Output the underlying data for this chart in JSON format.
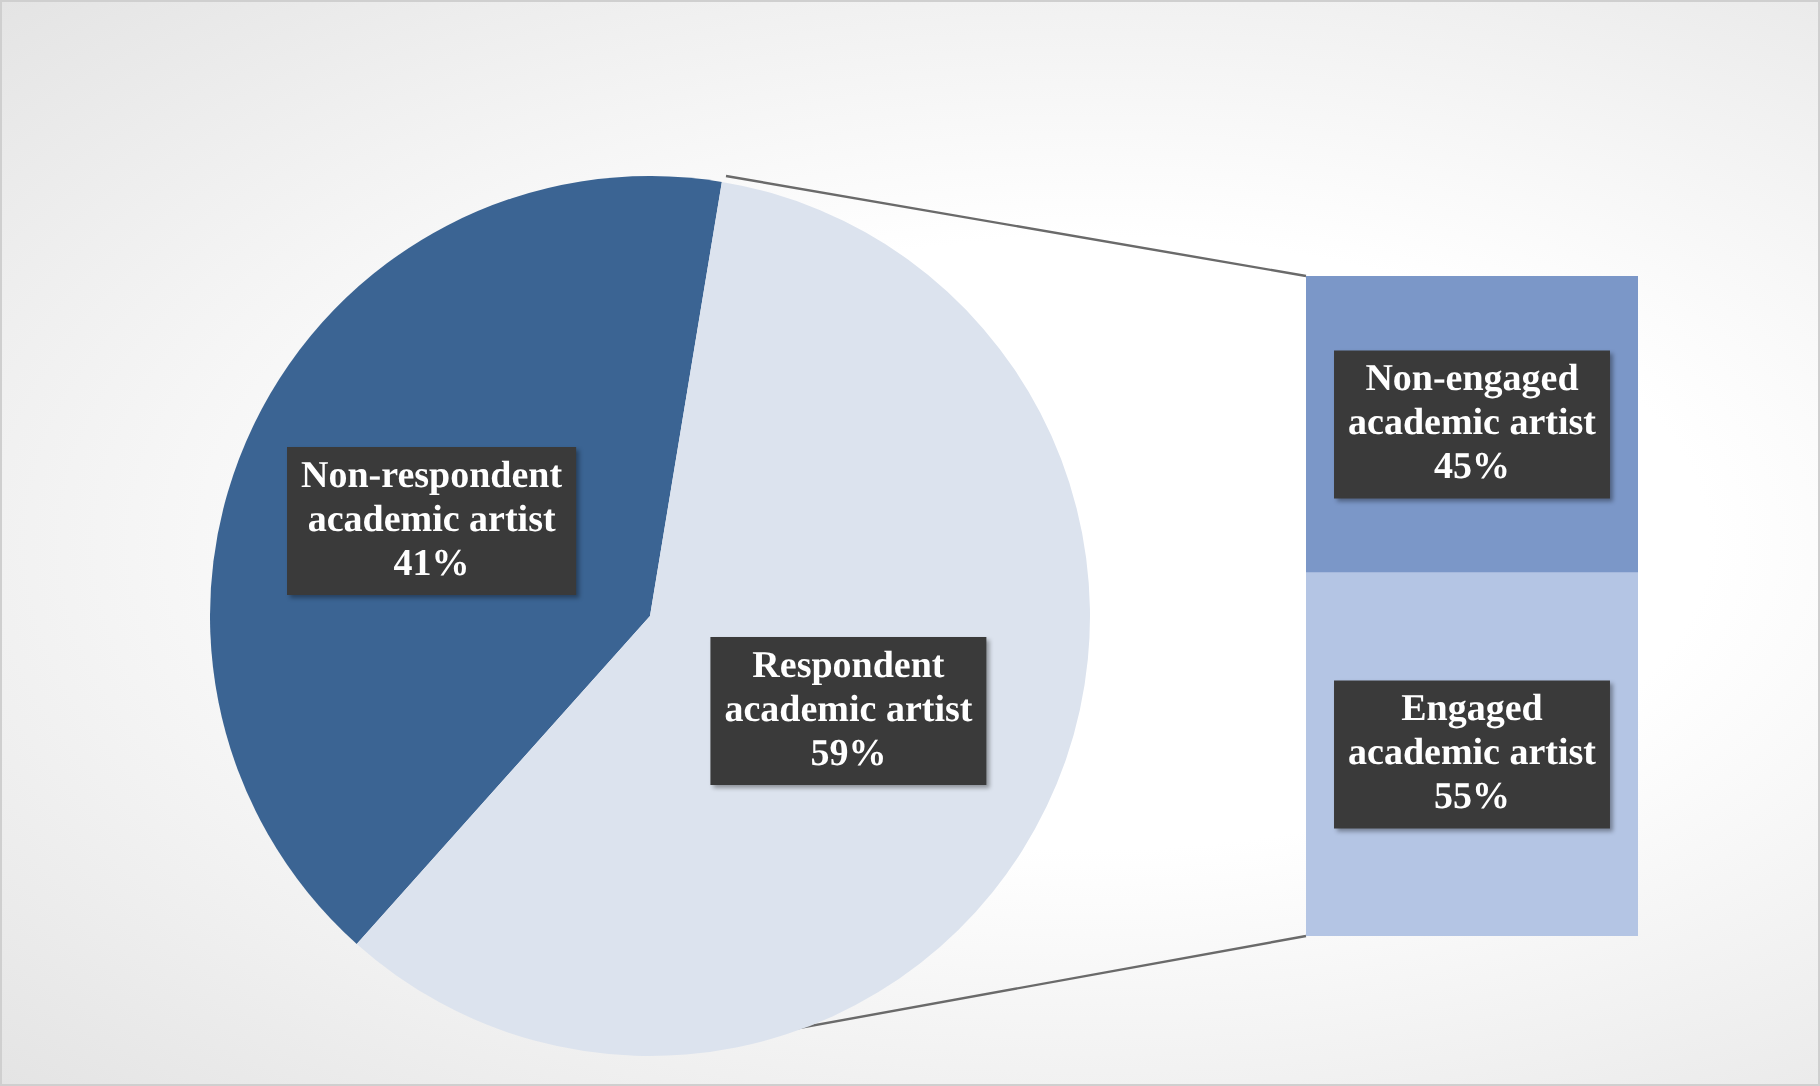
{
  "chart_data": [
    {
      "type": "pie",
      "categories": [
        "Non-respondent academic artist",
        "Respondent academic artist"
      ],
      "values": [
        41,
        59
      ],
      "value_labels": [
        "41%",
        "59%"
      ],
      "colors": [
        "#3b6493",
        "#dce3ee"
      ],
      "legend": false
    },
    {
      "type": "bar",
      "stacked": true,
      "categories": [
        null
      ],
      "tick_labels": false,
      "legend": false,
      "series": [
        {
          "name": "Engaged academic artist",
          "color": "#b4c5e4",
          "values": [
            55
          ],
          "value_labels": [
            "55%"
          ]
        },
        {
          "name": "Non-engaged academic artist",
          "color": "#7b97c8",
          "values": [
            45
          ],
          "value_labels": [
            "45%"
          ]
        }
      ]
    }
  ]
}
